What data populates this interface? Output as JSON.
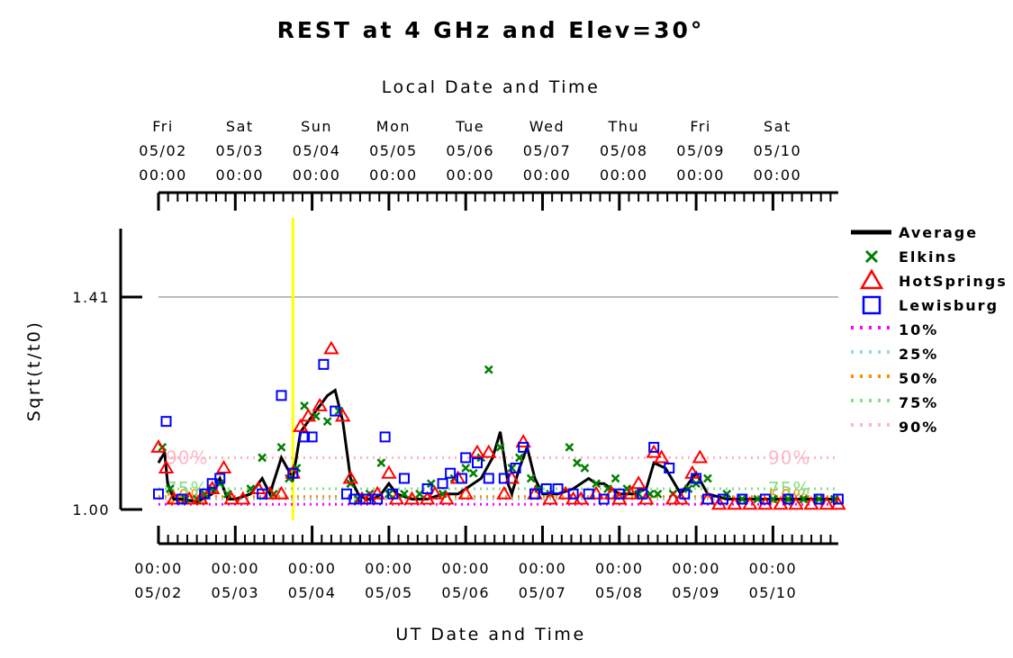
{
  "chart_data": {
    "type": "line",
    "title": "REST at 4 GHz and Elev=30°",
    "top_axis_title": "Local Date and Time",
    "xlabel": "UT Date and Time",
    "ylabel": "Sqrt(t/t0)",
    "y_tick_labels": [
      "1.41",
      "1.00"
    ],
    "ylim": [
      0.97,
      1.54
    ],
    "xlim_days_offset_from_0502_0000": [
      0.0,
      8.85
    ],
    "top_ticks": [
      {
        "day": "Fri",
        "date": "05/02",
        "time": "00:00"
      },
      {
        "day": "Sat",
        "date": "05/03",
        "time": "00:00"
      },
      {
        "day": "Sun",
        "date": "05/04",
        "time": "00:00"
      },
      {
        "day": "Mon",
        "date": "05/05",
        "time": "00:00"
      },
      {
        "day": "Tue",
        "date": "05/06",
        "time": "00:00"
      },
      {
        "day": "Wed",
        "date": "05/07",
        "time": "00:00"
      },
      {
        "day": "Thu",
        "date": "05/08",
        "time": "00:00"
      },
      {
        "day": "Fri",
        "date": "05/09",
        "time": "00:00"
      },
      {
        "day": "Sat",
        "date": "05/10",
        "time": "00:00"
      }
    ],
    "bottom_ticks": [
      {
        "time": "00:00",
        "date": "05/02"
      },
      {
        "time": "00:00",
        "date": "05/03"
      },
      {
        "time": "00:00",
        "date": "05/04"
      },
      {
        "time": "00:00",
        "date": "05/05"
      },
      {
        "time": "00:00",
        "date": "05/06"
      },
      {
        "time": "00:00",
        "date": "05/07"
      },
      {
        "time": "00:00",
        "date": "05/08"
      },
      {
        "time": "00:00",
        "date": "05/09"
      },
      {
        "time": "00:00",
        "date": "05/10"
      }
    ],
    "reference_line_y": 1.41,
    "current_time_marker_x": 1.75,
    "percentile_lines": [
      {
        "name": "10%",
        "value": 1.01,
        "color": "#ff00ff",
        "label": ""
      },
      {
        "name": "25%",
        "value": 1.02,
        "color": "#99d6ea",
        "label": ""
      },
      {
        "name": "50%",
        "value": 1.025,
        "color": "#ff8c00",
        "label": "50%"
      },
      {
        "name": "75%",
        "value": 1.04,
        "color": "#88dd88",
        "label": "75%"
      },
      {
        "name": "90%",
        "value": 1.1,
        "color": "#ffb6c1",
        "label": "90%"
      }
    ],
    "legend": [
      "Average",
      "Elkins",
      "HotSprings",
      "Lewisburg",
      "10%",
      "25%",
      "50%",
      "75%",
      "90%"
    ],
    "series": [
      {
        "name": "Average",
        "color": "#000000",
        "style": "line",
        "points": [
          [
            0,
            1.09
          ],
          [
            0.08,
            1.11
          ],
          [
            0.12,
            1.05
          ],
          [
            0.2,
            1.02
          ],
          [
            0.3,
            1.02
          ],
          [
            0.5,
            1.015
          ],
          [
            0.7,
            1.03
          ],
          [
            0.8,
            1.06
          ],
          [
            0.9,
            1.02
          ],
          [
            1.0,
            1.02
          ],
          [
            1.2,
            1.03
          ],
          [
            1.35,
            1.06
          ],
          [
            1.45,
            1.03
          ],
          [
            1.6,
            1.1
          ],
          [
            1.75,
            1.06
          ],
          [
            1.85,
            1.15
          ],
          [
            2.0,
            1.18
          ],
          [
            2.2,
            1.22
          ],
          [
            2.3,
            1.23
          ],
          [
            2.4,
            1.17
          ],
          [
            2.5,
            1.06
          ],
          [
            2.6,
            1.03
          ],
          [
            2.7,
            1.02
          ],
          [
            2.8,
            1.02
          ],
          [
            2.9,
            1.03
          ],
          [
            3.0,
            1.05
          ],
          [
            3.1,
            1.03
          ],
          [
            3.3,
            1.02
          ],
          [
            3.5,
            1.02
          ],
          [
            3.7,
            1.03
          ],
          [
            3.9,
            1.03
          ],
          [
            4.0,
            1.04
          ],
          [
            4.2,
            1.06
          ],
          [
            4.35,
            1.1
          ],
          [
            4.45,
            1.15
          ],
          [
            4.55,
            1.05
          ],
          [
            4.6,
            1.03
          ],
          [
            4.7,
            1.08
          ],
          [
            4.8,
            1.12
          ],
          [
            4.9,
            1.06
          ],
          [
            5.0,
            1.03
          ],
          [
            5.2,
            1.03
          ],
          [
            5.4,
            1.04
          ],
          [
            5.6,
            1.06
          ],
          [
            5.7,
            1.05
          ],
          [
            5.8,
            1.05
          ],
          [
            6.0,
            1.03
          ],
          [
            6.2,
            1.03
          ],
          [
            6.35,
            1.04
          ],
          [
            6.45,
            1.09
          ],
          [
            6.6,
            1.08
          ],
          [
            6.8,
            1.03
          ],
          [
            6.9,
            1.05
          ],
          [
            7.0,
            1.07
          ],
          [
            7.15,
            1.03
          ],
          [
            7.4,
            1.02
          ],
          [
            7.6,
            1.02
          ],
          [
            8.0,
            1.02
          ],
          [
            8.4,
            1.02
          ],
          [
            8.85,
            1.02
          ]
        ]
      },
      {
        "name": "Elkins",
        "color": "#008000",
        "style": "x",
        "points": [
          [
            0.05,
            1.12
          ],
          [
            0.15,
            1.04
          ],
          [
            0.35,
            1.02
          ],
          [
            0.5,
            1.02
          ],
          [
            0.6,
            1.03
          ],
          [
            0.7,
            1.04
          ],
          [
            0.8,
            1.05
          ],
          [
            0.9,
            1.03
          ],
          [
            1.2,
            1.04
          ],
          [
            1.35,
            1.1
          ],
          [
            1.5,
            1.03
          ],
          [
            1.6,
            1.12
          ],
          [
            1.7,
            1.06
          ],
          [
            1.8,
            1.08
          ],
          [
            1.9,
            1.2
          ],
          [
            2.05,
            1.18
          ],
          [
            2.2,
            1.17
          ],
          [
            2.35,
            1.19
          ],
          [
            2.5,
            1.05
          ],
          [
            2.6,
            1.02
          ],
          [
            2.75,
            1.03
          ],
          [
            2.9,
            1.09
          ],
          [
            3.0,
            1.03
          ],
          [
            3.2,
            1.03
          ],
          [
            3.4,
            1.03
          ],
          [
            3.55,
            1.05
          ],
          [
            3.7,
            1.03
          ],
          [
            3.85,
            1.06
          ],
          [
            4.0,
            1.08
          ],
          [
            4.1,
            1.07
          ],
          [
            4.2,
            1.1
          ],
          [
            4.3,
            1.27
          ],
          [
            4.45,
            1.12
          ],
          [
            4.6,
            1.08
          ],
          [
            4.7,
            1.1
          ],
          [
            4.85,
            1.06
          ],
          [
            4.95,
            1.04
          ],
          [
            5.1,
            1.03
          ],
          [
            5.35,
            1.12
          ],
          [
            5.45,
            1.09
          ],
          [
            5.55,
            1.08
          ],
          [
            5.7,
            1.05
          ],
          [
            5.85,
            1.04
          ],
          [
            5.95,
            1.06
          ],
          [
            6.1,
            1.04
          ],
          [
            6.25,
            1.03
          ],
          [
            6.4,
            1.03
          ],
          [
            6.5,
            1.03
          ],
          [
            6.7,
            1.03
          ],
          [
            6.9,
            1.04
          ],
          [
            7.0,
            1.05
          ],
          [
            7.15,
            1.06
          ],
          [
            7.4,
            1.03
          ],
          [
            7.6,
            1.02
          ],
          [
            7.8,
            1.02
          ],
          [
            8.0,
            1.02
          ],
          [
            8.2,
            1.02
          ],
          [
            8.4,
            1.02
          ],
          [
            8.6,
            1.02
          ],
          [
            8.8,
            1.02
          ]
        ]
      },
      {
        "name": "HotSprings",
        "color": "#ff0000",
        "style": "triangle",
        "points": [
          [
            0,
            1.12
          ],
          [
            0.1,
            1.08
          ],
          [
            0.2,
            1.02
          ],
          [
            0.4,
            1.02
          ],
          [
            0.55,
            1.02
          ],
          [
            0.7,
            1.04
          ],
          [
            0.85,
            1.08
          ],
          [
            0.95,
            1.02
          ],
          [
            1.1,
            1.02
          ],
          [
            1.3,
            1.04
          ],
          [
            1.45,
            1.03
          ],
          [
            1.6,
            1.03
          ],
          [
            1.75,
            1.07
          ],
          [
            1.85,
            1.16
          ],
          [
            1.95,
            1.18
          ],
          [
            2.1,
            1.2
          ],
          [
            2.25,
            1.31
          ],
          [
            2.4,
            1.18
          ],
          [
            2.5,
            1.06
          ],
          [
            2.65,
            1.02
          ],
          [
            2.75,
            1.02
          ],
          [
            2.85,
            1.03
          ],
          [
            3.0,
            1.07
          ],
          [
            3.1,
            1.02
          ],
          [
            3.3,
            1.02
          ],
          [
            3.5,
            1.02
          ],
          [
            3.6,
            1.03
          ],
          [
            3.75,
            1.02
          ],
          [
            3.9,
            1.06
          ],
          [
            4.0,
            1.03
          ],
          [
            4.15,
            1.11
          ],
          [
            4.3,
            1.11
          ],
          [
            4.5,
            1.03
          ],
          [
            4.6,
            1.06
          ],
          [
            4.75,
            1.13
          ],
          [
            4.9,
            1.03
          ],
          [
            5.1,
            1.02
          ],
          [
            5.3,
            1.03
          ],
          [
            5.4,
            1.02
          ],
          [
            5.5,
            1.02
          ],
          [
            5.7,
            1.03
          ],
          [
            5.9,
            1.03
          ],
          [
            6.0,
            1.02
          ],
          [
            6.15,
            1.03
          ],
          [
            6.25,
            1.05
          ],
          [
            6.35,
            1.02
          ],
          [
            6.45,
            1.11
          ],
          [
            6.55,
            1.1
          ],
          [
            6.7,
            1.02
          ],
          [
            6.8,
            1.02
          ],
          [
            6.95,
            1.07
          ],
          [
            7.05,
            1.1
          ],
          [
            7.15,
            1.02
          ],
          [
            7.3,
            1.01
          ],
          [
            7.5,
            1.01
          ],
          [
            7.7,
            1.01
          ],
          [
            7.9,
            1.01
          ],
          [
            8.1,
            1.01
          ],
          [
            8.3,
            1.01
          ],
          [
            8.5,
            1.01
          ],
          [
            8.7,
            1.01
          ],
          [
            8.85,
            1.01
          ]
        ]
      },
      {
        "name": "Lewisburg",
        "color": "#0000ff",
        "style": "square",
        "points": [
          [
            0,
            1.03
          ],
          [
            0.1,
            1.17
          ],
          [
            0.3,
            1.02
          ],
          [
            0.6,
            1.03
          ],
          [
            0.7,
            1.05
          ],
          [
            0.8,
            1.06
          ],
          [
            1.35,
            1.03
          ],
          [
            1.6,
            1.22
          ],
          [
            1.75,
            1.07
          ],
          [
            1.9,
            1.14
          ],
          [
            2.0,
            1.14
          ],
          [
            2.15,
            1.28
          ],
          [
            2.3,
            1.19
          ],
          [
            2.45,
            1.03
          ],
          [
            2.55,
            1.02
          ],
          [
            2.7,
            1.02
          ],
          [
            2.85,
            1.02
          ],
          [
            2.95,
            1.14
          ],
          [
            3.05,
            1.03
          ],
          [
            3.2,
            1.06
          ],
          [
            3.5,
            1.04
          ],
          [
            3.7,
            1.05
          ],
          [
            3.8,
            1.07
          ],
          [
            3.95,
            1.06
          ],
          [
            4.0,
            1.1
          ],
          [
            4.15,
            1.09
          ],
          [
            4.3,
            1.06
          ],
          [
            4.5,
            1.06
          ],
          [
            4.65,
            1.08
          ],
          [
            4.75,
            1.12
          ],
          [
            4.9,
            1.03
          ],
          [
            5.05,
            1.04
          ],
          [
            5.2,
            1.04
          ],
          [
            5.4,
            1.03
          ],
          [
            5.6,
            1.03
          ],
          [
            5.8,
            1.02
          ],
          [
            6.0,
            1.03
          ],
          [
            6.3,
            1.03
          ],
          [
            6.45,
            1.12
          ],
          [
            6.65,
            1.08
          ],
          [
            6.85,
            1.03
          ],
          [
            7.0,
            1.06
          ],
          [
            7.15,
            1.02
          ],
          [
            7.35,
            1.02
          ],
          [
            7.6,
            1.02
          ],
          [
            7.9,
            1.02
          ],
          [
            8.2,
            1.02
          ],
          [
            8.6,
            1.02
          ],
          [
            8.85,
            1.02
          ]
        ]
      }
    ]
  }
}
